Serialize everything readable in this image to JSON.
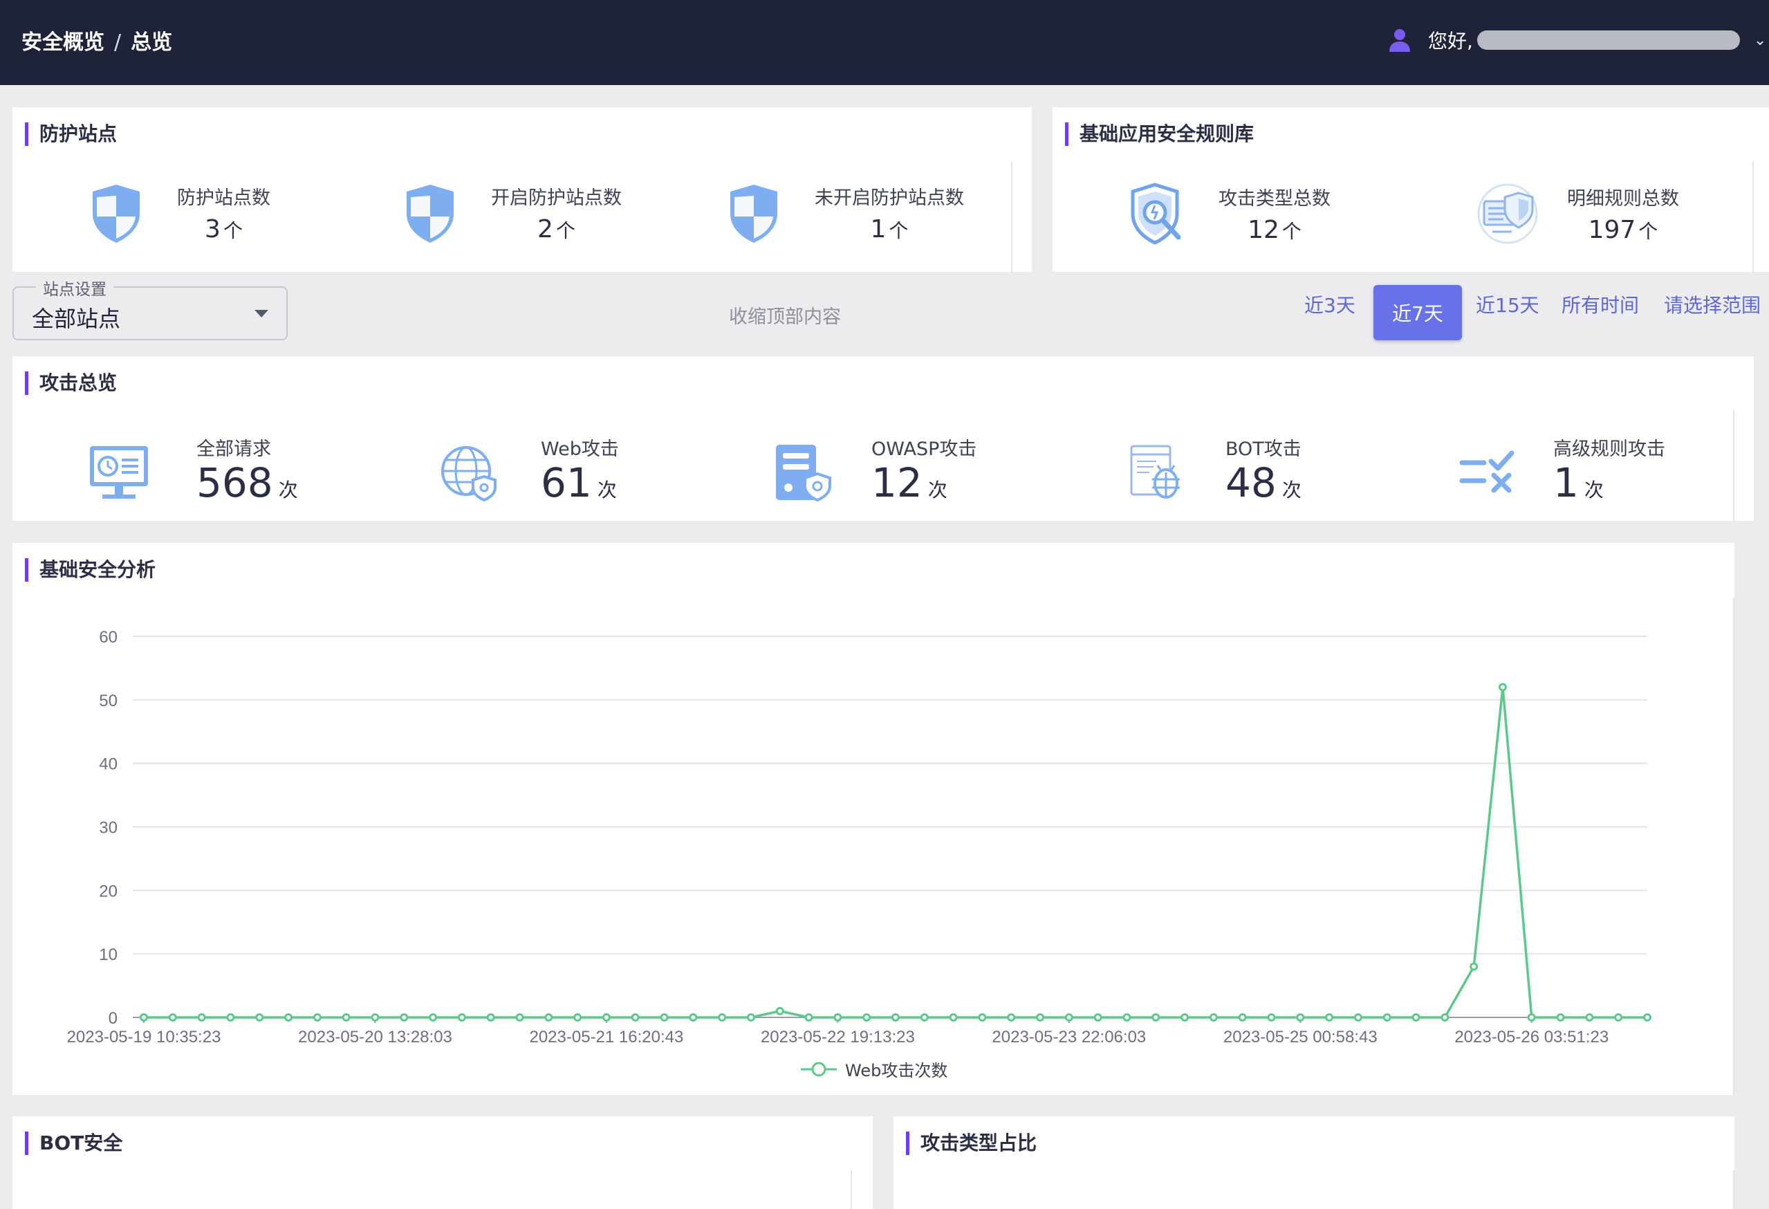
{
  "header": {
    "breadcrumb": [
      "安全概览",
      "总览"
    ],
    "breadcrumb_sep": "/",
    "greeting": "您好,"
  },
  "protect": {
    "title": "防护站点",
    "items": [
      {
        "label": "防护站点数",
        "value": "3",
        "unit": "个",
        "icon": "shield-icon"
      },
      {
        "label": "开启防护站点数",
        "value": "2",
        "unit": "个",
        "icon": "shield-icon"
      },
      {
        "label": "未开启防护站点数",
        "value": "1",
        "unit": "个",
        "icon": "shield-icon"
      }
    ]
  },
  "rules": {
    "title": "基础应用安全规则库",
    "items": [
      {
        "label": "攻击类型总数",
        "value": "12",
        "unit": "个",
        "icon": "shield-search-icon"
      },
      {
        "label": "明细规则总数",
        "value": "197",
        "unit": "个",
        "icon": "rules-shield-icon"
      }
    ]
  },
  "controls": {
    "site_legend": "站点设置",
    "site_value": "全部站点",
    "collapse": "收缩顶部内容",
    "ranges": [
      "近3天",
      "近7天",
      "近15天",
      "所有时间",
      "请选择范围"
    ],
    "active_range": "近7天"
  },
  "attack": {
    "title": "攻击总览",
    "unit": "次",
    "items": [
      {
        "label": "全部请求",
        "value": "568",
        "icon": "monitor-icon"
      },
      {
        "label": "Web攻击",
        "value": "61",
        "icon": "globe-shield-icon"
      },
      {
        "label": "OWASP攻击",
        "value": "12",
        "icon": "server-shield-icon"
      },
      {
        "label": "BOT攻击",
        "value": "48",
        "icon": "bug-icon"
      },
      {
        "label": "高级规则攻击",
        "value": "1",
        "icon": "rules-check-icon"
      }
    ]
  },
  "analysis": {
    "title": "基础安全分析"
  },
  "chart_data": {
    "type": "line",
    "title": "",
    "xlabel": "",
    "ylabel": "",
    "ylim": [
      0,
      60
    ],
    "yticks": [
      0,
      10,
      20,
      30,
      40,
      50,
      60
    ],
    "x_tick_labels": [
      "2023-05-19 10:35:23",
      "2023-05-20 13:28:03",
      "2023-05-21 16:20:43",
      "2023-05-22 19:13:23",
      "2023-05-23 22:06:03",
      "2023-05-25 00:58:43",
      "2023-05-26 03:51:23"
    ],
    "grid": true,
    "legend": "bottom",
    "color": "#5cc98a",
    "series": [
      {
        "name": "Web攻击次数",
        "values": [
          0,
          0,
          0,
          0,
          0,
          0,
          0,
          0,
          0,
          0,
          0,
          0,
          0,
          0,
          0,
          0,
          0,
          0,
          0,
          0,
          0,
          0,
          1,
          0,
          0,
          0,
          0,
          0,
          0,
          0,
          0,
          0,
          0,
          0,
          0,
          0,
          0,
          0,
          0,
          0,
          0,
          0,
          0,
          0,
          0,
          0,
          8,
          52,
          0,
          0,
          0,
          0,
          0
        ]
      }
    ]
  },
  "bot": {
    "title": "BOT安全"
  },
  "attack_type": {
    "title": "攻击类型占比"
  }
}
